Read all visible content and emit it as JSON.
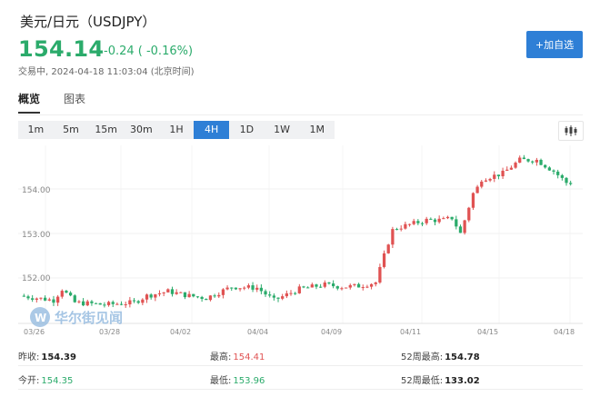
{
  "header": {
    "title": "美元/日元（USDJPY）",
    "price": "154.14",
    "change": "-0.24 ( -0.16%)",
    "status": "交易中,",
    "timestamp": "2024-04-18 11:03:04 (北京时间)",
    "add_button": "+加自选",
    "price_color": "#2bab6b"
  },
  "tabs": [
    {
      "label": "概览",
      "active": true
    },
    {
      "label": "图表",
      "active": false
    }
  ],
  "ranges": [
    {
      "label": "1m",
      "active": false
    },
    {
      "label": "5m",
      "active": false
    },
    {
      "label": "15m",
      "active": false
    },
    {
      "label": "30m",
      "active": false
    },
    {
      "label": "1H",
      "active": false
    },
    {
      "label": "4H",
      "active": true
    },
    {
      "label": "1D",
      "active": false
    },
    {
      "label": "1W",
      "active": false
    },
    {
      "label": "1M",
      "active": false
    }
  ],
  "chart_type_icon": "candlestick-icon",
  "chart_data": {
    "type": "candlestick",
    "y_ticks": [
      "154.00",
      "153.00",
      "152.00"
    ],
    "x_ticks": [
      "03/26",
      "03/28",
      "04/02",
      "04/04",
      "04/09",
      "04/11",
      "04/15",
      "04/18"
    ],
    "up_color": "#e05252",
    "down_color": "#2bab6b"
  },
  "watermark": {
    "text": "华尔街见闻"
  },
  "stats": {
    "row1": [
      {
        "label": "昨收:",
        "value": "154.39",
        "tone": "normal"
      },
      {
        "label": "最高:",
        "value": "154.41",
        "tone": "red"
      },
      {
        "label": "52周最高:",
        "value": "154.78",
        "tone": "normal"
      }
    ],
    "row2": [
      {
        "label": "今开:",
        "value": "154.35",
        "tone": "green"
      },
      {
        "label": "最低:",
        "value": "153.96",
        "tone": "green"
      },
      {
        "label": "52周最低:",
        "value": "133.02",
        "tone": "normal"
      }
    ]
  }
}
